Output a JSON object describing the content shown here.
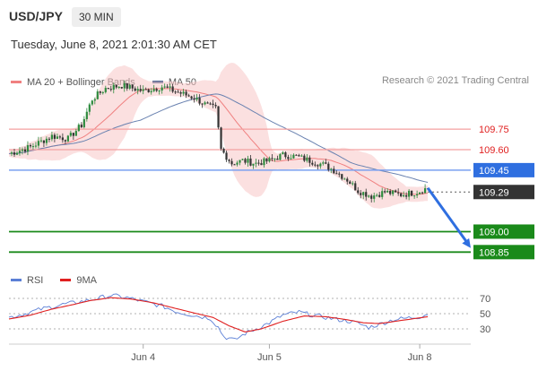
{
  "header": {
    "pair": "USD/JPY",
    "timeframe": "30 MIN",
    "datetime": "Tuesday, June 8, 2021 2:01:30 AM CET"
  },
  "legend": {
    "bollinger_label": "MA 20 + Bollinger Bands",
    "ma50_label": "MA 50",
    "bollinger_color": "#f08080",
    "ma50_color": "#3a5a8c"
  },
  "credit": "Research © 2021 Trading Central",
  "rsi_legend": {
    "rsi_label": "RSI",
    "ma_label": "9MA",
    "rsi_color": "#5b7fd6",
    "ma_color": "#e02020"
  },
  "chart_data": [
    {
      "type": "candlestick",
      "ylim": [
        108.78,
        110.02
      ],
      "x_tick_labels": [
        {
          "label": "Jun 4",
          "at": 50
        },
        {
          "label": "Jun 5",
          "at": 97
        },
        {
          "label": "Jun 8",
          "at": 153
        }
      ],
      "x_range": [
        0,
        172
      ],
      "levels": [
        {
          "value": 109.75,
          "label": "109.75",
          "kind": "resistance",
          "color": "#e02020"
        },
        {
          "value": 109.6,
          "label": "109.60",
          "kind": "resistance",
          "color": "#e02020"
        },
        {
          "value": 109.45,
          "label": "109.45",
          "kind": "pivot",
          "color": "#2f6fe0"
        },
        {
          "value": 109.29,
          "label": "109.29",
          "kind": "last",
          "color": "#333333"
        },
        {
          "value": 109.0,
          "label": "109.00",
          "kind": "target",
          "color": "#1a8a1a"
        },
        {
          "value": 108.85,
          "label": "108.85",
          "kind": "target",
          "color": "#1a8a1a"
        }
      ],
      "forecast": {
        "from": [
          156,
          109.32
        ],
        "to": [
          172,
          108.88
        ],
        "color": "#2f6fe0"
      },
      "anchors": [
        [
          0,
          109.57
        ],
        [
          8,
          109.62
        ],
        [
          16,
          109.7
        ],
        [
          22,
          109.68
        ],
        [
          27,
          109.78
        ],
        [
          31,
          109.97
        ],
        [
          36,
          110.05
        ],
        [
          42,
          110.07
        ],
        [
          50,
          110.03
        ],
        [
          57,
          110.06
        ],
        [
          63,
          110.02
        ],
        [
          69,
          109.98
        ],
        [
          74,
          109.92
        ],
        [
          77,
          109.9
        ],
        [
          79,
          109.6
        ],
        [
          83,
          109.5
        ],
        [
          87,
          109.52
        ],
        [
          92,
          109.5
        ],
        [
          97,
          109.52
        ],
        [
          102,
          109.56
        ],
        [
          107,
          109.55
        ],
        [
          112,
          109.52
        ],
        [
          117,
          109.49
        ],
        [
          121,
          109.45
        ],
        [
          126,
          109.38
        ],
        [
          130,
          109.3
        ],
        [
          135,
          109.26
        ],
        [
          140,
          109.29
        ],
        [
          146,
          109.27
        ],
        [
          152,
          109.29
        ],
        [
          156,
          109.32
        ]
      ]
    },
    {
      "type": "line",
      "title": "RSI",
      "ylim": [
        10,
        90
      ],
      "y_ticks": [
        70,
        50,
        30
      ],
      "series": [
        {
          "name": "RSI",
          "anchors": [
            [
              0,
              45
            ],
            [
              6,
              50
            ],
            [
              12,
              56
            ],
            [
              20,
              62
            ],
            [
              27,
              66
            ],
            [
              33,
              70
            ],
            [
              38,
              74
            ],
            [
              44,
              71
            ],
            [
              50,
              66
            ],
            [
              57,
              60
            ],
            [
              63,
              52
            ],
            [
              70,
              47
            ],
            [
              75,
              44
            ],
            [
              78,
              32
            ],
            [
              80,
              20
            ],
            [
              84,
              15
            ],
            [
              88,
              24
            ],
            [
              92,
              30
            ],
            [
              97,
              38
            ],
            [
              102,
              48
            ],
            [
              108,
              52
            ],
            [
              113,
              48
            ],
            [
              118,
              45
            ],
            [
              123,
              42
            ],
            [
              127,
              40
            ],
            [
              131,
              36
            ],
            [
              134,
              32
            ],
            [
              138,
              36
            ],
            [
              143,
              42
            ],
            [
              148,
              44
            ],
            [
              153,
              46
            ],
            [
              156,
              50
            ]
          ]
        },
        {
          "name": "9MA",
          "anchors": [
            [
              0,
              43
            ],
            [
              8,
              48
            ],
            [
              16,
              56
            ],
            [
              24,
              62
            ],
            [
              30,
              67
            ],
            [
              38,
              71
            ],
            [
              46,
              69
            ],
            [
              54,
              64
            ],
            [
              62,
              57
            ],
            [
              70,
              50
            ],
            [
              76,
              45
            ],
            [
              82,
              34
            ],
            [
              88,
              26
            ],
            [
              94,
              30
            ],
            [
              102,
              40
            ],
            [
              110,
              47
            ],
            [
              118,
              46
            ],
            [
              126,
              42
            ],
            [
              132,
              38
            ],
            [
              138,
              37
            ],
            [
              146,
              41
            ],
            [
              156,
              46
            ]
          ]
        }
      ]
    }
  ]
}
